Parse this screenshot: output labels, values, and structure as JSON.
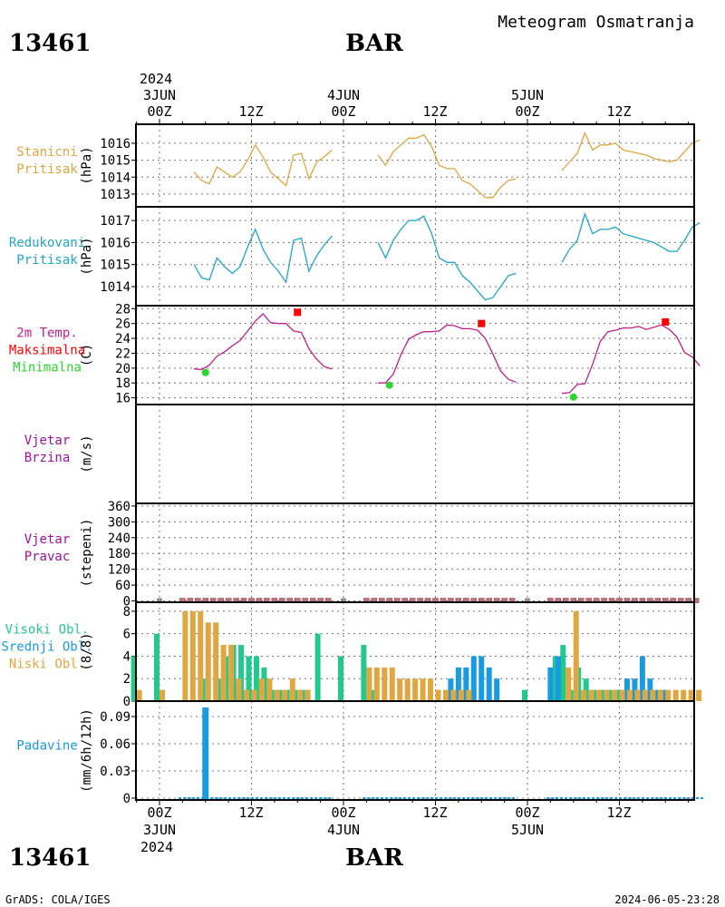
{
  "header": {
    "station": "13461",
    "title": "Meteogram Osmatranja",
    "name": "BAR"
  },
  "footer": {
    "station": "13461",
    "name": "BAR",
    "credit": "GrADS: COLA/IGES",
    "timestamp": "2024-06-05-23:28"
  },
  "time_axis": {
    "top_year": "2024",
    "day_labels": [
      "3JUN",
      "4JUN",
      "5JUN"
    ],
    "hour_labels": [
      "00Z",
      "12Z",
      "00Z",
      "12Z",
      "00Z",
      "12Z"
    ],
    "bottom_year": "2024"
  },
  "colors": {
    "pressure": "#e0a640",
    "reduced": "#1fa6c8",
    "temp": "#c21f8d",
    "max": "#ff0000",
    "min": "#2cd62c",
    "wind": "#a012a0",
    "high": "#22c98c",
    "mid": "#1a9ae0",
    "low": "#e0a640",
    "precip": "#1a9ae0",
    "dirbar": "#c0707a",
    "missing": "#909090"
  },
  "chart_data": [
    {
      "type": "line",
      "panel": "stanicni-pritisak",
      "labels": [
        "Stanicni",
        "Pritisak"
      ],
      "ylabel": "(hPa)",
      "yticks": [
        1013,
        1014,
        1015,
        1016
      ],
      "ylim": [
        1012.3,
        1016.8
      ],
      "segments": [
        {
          "x": [
            4.5,
            5.5,
            6.5,
            7.5,
            8.5,
            9.5,
            10.5,
            11.5,
            12.5,
            13.5,
            14.5,
            15.5,
            16.5,
            17.5,
            18.5,
            19.5,
            20.5,
            21.5,
            22.5
          ],
          "y": [
            1014.3,
            1013.8,
            1013.6,
            1014.6,
            1014.3,
            1014.0,
            1014.3,
            1015.0,
            1015.9,
            1015.2,
            1014.3,
            1013.9,
            1013.5,
            1015.3,
            1015.4,
            1013.9,
            1014.9,
            1015.2,
            1015.6
          ]
        },
        {
          "x": [
            28.5,
            29.5,
            30.5,
            31.5,
            32.5,
            33.5,
            34.5,
            35.5,
            36.5,
            37.5,
            38.5,
            39.5,
            40.5,
            41.5,
            42.5,
            43.5,
            44.5,
            45.5,
            46.5
          ],
          "y": [
            1015.3,
            1014.7,
            1015.5,
            1015.9,
            1016.3,
            1016.3,
            1016.5,
            1015.8,
            1014.7,
            1014.5,
            1014.5,
            1013.8,
            1013.6,
            1013.2,
            1012.8,
            1012.8,
            1013.4,
            1013.8,
            1013.9
          ]
        },
        {
          "x": [
            52.5,
            53.5,
            54.5,
            55.5,
            56.5,
            57.5,
            58.5,
            59.5,
            60.5,
            61.5,
            62.5,
            63.5,
            64.5,
            65.5,
            66.5,
            67.5,
            68.5,
            69.5,
            70.5
          ],
          "y": [
            1014.4,
            1014.9,
            1015.4,
            1016.6,
            1015.6,
            1015.9,
            1015.9,
            1016.0,
            1015.6,
            1015.5,
            1015.4,
            1015.3,
            1015.1,
            1015.0,
            1014.9,
            1015.0,
            1015.5,
            1016.0,
            1016.2
          ]
        }
      ]
    },
    {
      "type": "line",
      "panel": "redukovani-pritisak",
      "labels": [
        "Redukovani",
        "Pritisak"
      ],
      "ylabel": "(hPa)",
      "yticks": [
        1014,
        1015,
        1016,
        1017
      ],
      "ylim": [
        1013.3,
        1017.5
      ],
      "segments": [
        {
          "x": [
            4.5,
            5.5,
            6.5,
            7.5,
            8.5,
            9.5,
            10.5,
            11.5,
            12.5,
            13.5,
            14.5,
            15.5,
            16.5,
            17.5,
            18.5,
            19.5,
            20.5,
            21.5,
            22.5
          ],
          "y": [
            1015.0,
            1014.4,
            1014.3,
            1015.3,
            1014.9,
            1014.6,
            1014.9,
            1015.8,
            1016.6,
            1015.7,
            1015.1,
            1014.7,
            1014.2,
            1016.1,
            1016.2,
            1014.7,
            1015.4,
            1015.9,
            1016.3
          ]
        },
        {
          "x": [
            28.5,
            29.5,
            30.5,
            31.5,
            32.5,
            33.5,
            34.5,
            35.5,
            36.5,
            37.5,
            38.5,
            39.5,
            40.5,
            41.5,
            42.5,
            43.5,
            44.5,
            45.5,
            46.5
          ],
          "y": [
            1016.0,
            1015.3,
            1016.1,
            1016.6,
            1017.0,
            1017.0,
            1017.2,
            1016.4,
            1015.3,
            1015.1,
            1015.1,
            1014.5,
            1014.2,
            1013.8,
            1013.4,
            1013.5,
            1014.0,
            1014.5,
            1014.6
          ]
        },
        {
          "x": [
            52.5,
            53.5,
            54.5,
            55.5,
            56.5,
            57.5,
            58.5,
            59.5,
            60.5,
            61.5,
            62.5,
            63.5,
            64.5,
            65.5,
            66.5,
            67.5,
            68.5,
            69.5,
            70.5
          ],
          "y": [
            1015.1,
            1015.7,
            1016.1,
            1017.3,
            1016.4,
            1016.6,
            1016.6,
            1016.7,
            1016.4,
            1016.3,
            1016.2,
            1016.1,
            1016.0,
            1015.8,
            1015.6,
            1015.6,
            1016.1,
            1016.7,
            1016.9
          ]
        }
      ]
    },
    {
      "type": "line",
      "panel": "temperatura",
      "labels": [
        "2m Temp.",
        "Maksimalna",
        "Minimalna"
      ],
      "ylabel": "(C)",
      "yticks": [
        16,
        18,
        20,
        22,
        24,
        26,
        28
      ],
      "ylim": [
        15.1,
        28.4
      ],
      "segments": [
        {
          "x": [
            4.5,
            5.5,
            6.5,
            7.5,
            8.5,
            9.5,
            10.5,
            11.5,
            12.5,
            13.5,
            14.5,
            15.5,
            16.5,
            17.5,
            18.5,
            19.5,
            20.5,
            21.5,
            22.5
          ],
          "y": [
            19.9,
            19.8,
            20.4,
            21.6,
            22.2,
            23.0,
            23.7,
            25.0,
            26.3,
            27.3,
            26.1,
            26.0,
            26.0,
            25.0,
            24.8,
            22.6,
            21.2,
            20.2,
            19.9
          ]
        },
        {
          "x": [
            28.5,
            29.5,
            30.5,
            31.5,
            32.5,
            33.5,
            34.5,
            35.5,
            36.5,
            37.5,
            38.5,
            39.5,
            40.5,
            41.5,
            42.5,
            43.5,
            44.5,
            45.5,
            46.5
          ],
          "y": [
            18.0,
            18.0,
            19.2,
            21.8,
            23.9,
            24.5,
            24.9,
            24.9,
            25.0,
            25.8,
            25.7,
            25.3,
            25.3,
            25.1,
            24.0,
            21.9,
            19.6,
            18.5,
            18.1
          ]
        },
        {
          "x": [
            52.5,
            53.5,
            54.5,
            55.5,
            56.5,
            57.5,
            58.5,
            59.5,
            60.5,
            61.5,
            62.5,
            63.5,
            64.5,
            65.5,
            66.5,
            67.5,
            68.5,
            69.5,
            70.5
          ],
          "y": [
            16.6,
            16.7,
            17.8,
            17.9,
            20.5,
            23.6,
            24.9,
            25.1,
            25.4,
            25.4,
            25.6,
            25.2,
            25.5,
            25.8,
            25.2,
            24.2,
            22.1,
            21.5,
            20.3
          ]
        }
      ],
      "max_points": [
        {
          "x": 18,
          "y": 27.5
        },
        {
          "x": 42,
          "y": 26.0
        },
        {
          "x": 66,
          "y": 26.2
        }
      ],
      "min_points": [
        {
          "x": 6,
          "y": 19.4
        },
        {
          "x": 30,
          "y": 17.7
        },
        {
          "x": 54,
          "y": 16.1
        }
      ]
    },
    {
      "type": "line",
      "panel": "vjetar-brzina",
      "labels": [
        "Vjetar",
        "Brzina"
      ],
      "ylabel": "(m/s)",
      "yticks": [],
      "segments": []
    },
    {
      "type": "bar",
      "panel": "vjetar-pravac",
      "labels": [
        "Vjetar",
        "Pravac"
      ],
      "ylabel": "(stepeni)",
      "yticks": [
        0,
        60,
        120,
        180,
        240,
        300,
        360
      ],
      "ylim": [
        -5,
        370
      ],
      "calm_x": [
        3,
        4,
        5,
        6,
        7,
        8,
        9,
        10,
        11,
        12,
        13,
        14,
        15,
        16,
        17,
        18,
        19,
        20,
        21,
        22,
        27,
        28,
        29,
        30,
        31,
        32,
        33,
        34,
        35,
        36,
        37,
        38,
        39,
        40,
        41,
        42,
        43,
        44,
        45,
        46,
        51,
        52,
        53,
        54,
        55,
        56,
        57,
        58,
        59,
        60,
        61,
        62,
        63,
        64,
        65,
        66,
        67,
        68,
        69,
        70
      ],
      "missing_x": [
        0,
        24,
        48
      ]
    },
    {
      "type": "bar",
      "panel": "oblacnost",
      "labels": [
        "Visoki Obl.",
        "Srednji Obl.",
        "Niski Obl."
      ],
      "ylabel": "(8/8)",
      "yticks": [
        0,
        2,
        4,
        6,
        8
      ],
      "ylim": [
        0,
        8.8
      ],
      "series": [
        {
          "name": "Visoki Obl.",
          "points": [
            [
              -3,
              4
            ],
            [
              0,
              6
            ],
            [
              6,
              2
            ],
            [
              8,
              2
            ],
            [
              9,
              4
            ],
            [
              10,
              5
            ],
            [
              11,
              5
            ],
            [
              12,
              4
            ],
            [
              13,
              4
            ],
            [
              14,
              3
            ],
            [
              15,
              1
            ],
            [
              16,
              1
            ],
            [
              17,
              1
            ],
            [
              18,
              1
            ],
            [
              19,
              1
            ],
            [
              21,
              6
            ],
            [
              24,
              4
            ],
            [
              27,
              5
            ],
            [
              28,
              1
            ],
            [
              48,
              1
            ],
            [
              52,
              4
            ],
            [
              53,
              5
            ],
            [
              54,
              1
            ],
            [
              55,
              3
            ],
            [
              56,
              2
            ],
            [
              57,
              1
            ],
            [
              58,
              1
            ],
            [
              59,
              1
            ],
            [
              60,
              1
            ],
            [
              61,
              1
            ],
            [
              62,
              1
            ],
            [
              63,
              1
            ],
            [
              64,
              1
            ],
            [
              66,
              1
            ]
          ]
        },
        {
          "name": "Srednji Obl.",
          "points": [
            [
              38,
              2
            ],
            [
              39,
              3
            ],
            [
              40,
              3
            ],
            [
              41,
              4
            ],
            [
              42,
              4
            ],
            [
              43,
              3
            ],
            [
              44,
              2
            ],
            [
              51,
              3
            ],
            [
              52,
              4
            ],
            [
              61,
              2
            ],
            [
              62,
              2
            ],
            [
              63,
              4
            ],
            [
              64,
              2
            ],
            [
              65,
              1
            ],
            [
              66,
              1
            ]
          ]
        },
        {
          "name": "Niski Obl.",
          "points": [
            [
              -3,
              1
            ],
            [
              0,
              1
            ],
            [
              3,
              8
            ],
            [
              4,
              8
            ],
            [
              5,
              8
            ],
            [
              6,
              7
            ],
            [
              7,
              7
            ],
            [
              8,
              5
            ],
            [
              9,
              5
            ],
            [
              10,
              2
            ],
            [
              11,
              1
            ],
            [
              12,
              1
            ],
            [
              13,
              2
            ],
            [
              14,
              2
            ],
            [
              15,
              1
            ],
            [
              16,
              1
            ],
            [
              17,
              2
            ],
            [
              18,
              1
            ],
            [
              19,
              1
            ],
            [
              27,
              3
            ],
            [
              28,
              3
            ],
            [
              29,
              3
            ],
            [
              30,
              3
            ],
            [
              31,
              2
            ],
            [
              32,
              2
            ],
            [
              33,
              2
            ],
            [
              34,
              2
            ],
            [
              35,
              2
            ],
            [
              36,
              1
            ],
            [
              37,
              1
            ],
            [
              38,
              1
            ],
            [
              39,
              1
            ],
            [
              40,
              1
            ],
            [
              53,
              3
            ],
            [
              54,
              8
            ],
            [
              55,
              1
            ],
            [
              56,
              1
            ],
            [
              57,
              1
            ],
            [
              58,
              1
            ],
            [
              59,
              1
            ],
            [
              60,
              1
            ],
            [
              61,
              1
            ],
            [
              62,
              1
            ],
            [
              63,
              1
            ],
            [
              64,
              1
            ],
            [
              65,
              1
            ],
            [
              66,
              1
            ],
            [
              67,
              1
            ],
            [
              68,
              1
            ],
            [
              69,
              1
            ],
            [
              70,
              1
            ]
          ]
        }
      ]
    },
    {
      "type": "bar",
      "panel": "padavine",
      "labels": [
        "Padavine"
      ],
      "ylabel": "(mm/6h/12h)",
      "yticks": [
        0,
        0.03,
        0.06,
        0.09
      ],
      "ytick_labels": [
        "0",
        "0.03",
        "0.06",
        "0.09"
      ],
      "ylim": [
        -0.002,
        0.107
      ],
      "bars": [
        {
          "x": 6,
          "value": 0.1
        }
      ],
      "zero_ranges": [
        [
          2.5,
          22.5
        ],
        [
          26.5,
          46.5
        ],
        [
          50.5,
          71
        ]
      ]
    }
  ]
}
